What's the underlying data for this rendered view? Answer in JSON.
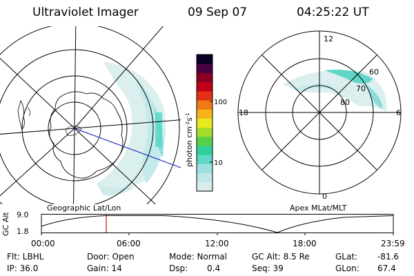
{
  "header": {
    "instrument": "Ultraviolet Imager",
    "date": "09 Sep 07",
    "time": "04:25:22 UT"
  },
  "left_panel": {
    "label": "Geographic Lat/Lon"
  },
  "right_panel": {
    "label": "Apex MLat/MLT",
    "mlt_labels": [
      "12",
      "6",
      "0",
      "18"
    ],
    "mlat_labels": [
      "60",
      "70",
      "80"
    ]
  },
  "colorbar": {
    "unit_label": "photon cm",
    "unit_exp1": "-2",
    "unit_s": "s",
    "unit_exp2": "-1",
    "tick_labels": [
      "100",
      "10"
    ],
    "colors": [
      "#d8ecec",
      "#c0e6e6",
      "#9ee0e0",
      "#5fd6c6",
      "#30d09a",
      "#5ad04a",
      "#a6dc2a",
      "#e8e81e",
      "#f4b41a",
      "#f07a18",
      "#e03018",
      "#c00018",
      "#8a0022",
      "#4a0044",
      "#0a0024"
    ]
  },
  "altitude_plot": {
    "ylabel": "GC Alt",
    "ytick_top": "9.0",
    "ytick_bottom": "1.8",
    "x_ticks": [
      "00:00",
      "06:00",
      "12:00",
      "18:00",
      "23:59"
    ],
    "marker_color": "#e00000"
  },
  "status": {
    "flt": "Flt: LBHL",
    "ip": "IP: 36.0",
    "door": "Door: Open",
    "gain": "Gain: 14",
    "mode": "Mode: Normal",
    "dsp_label": "Dsp:",
    "dsp_value": "0.4",
    "gc_alt": "GC Alt: 8.5 Re",
    "seq": "Seq: 39",
    "glat_label": "GLat:",
    "glat_value": "-81.6",
    "glon_label": "GLon:",
    "glon_value": "67.4"
  },
  "colors": {
    "aurora_light": "#dcefef",
    "aurora_mid": "#a8e4e4",
    "aurora_bright": "#4fd8cc",
    "track_line": "#2030c0"
  }
}
